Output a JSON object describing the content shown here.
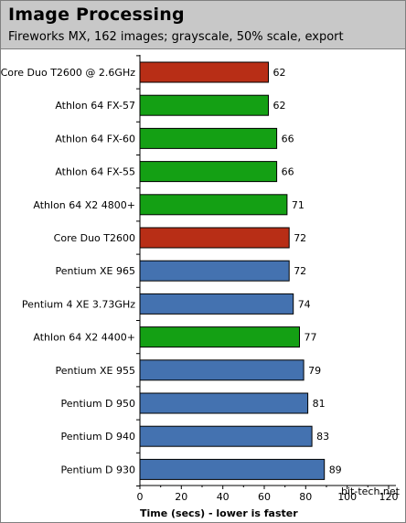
{
  "header": {
    "title": "Image Processing",
    "subtitle": "Fireworks MX, 162 images; grayscale, 50% scale, export"
  },
  "watermark": "bit-tech.net",
  "colors": {
    "intel_mobile": "#b82e16",
    "amd": "#14a014",
    "intel_desktop": "#4472b0"
  },
  "chart_data": {
    "type": "bar",
    "orientation": "horizontal",
    "title": "Image Processing",
    "subtitle": "Fireworks MX, 162 images; grayscale, 50% scale, export",
    "xlabel": "Time (secs) - lower is faster",
    "ylabel": "",
    "xlim": [
      0,
      120
    ],
    "xticks": [
      "0",
      "20",
      "40",
      "60",
      "80",
      "100",
      "120"
    ],
    "categories": [
      "Core Duo T2600 @ 2.6GHz",
      "Athlon 64 FX-57",
      "Athlon 64 FX-60",
      "Athlon 64 FX-55",
      "Athlon 64 X2 4800+",
      "Core Duo T2600",
      "Pentium XE 965",
      "Pentium 4 XE 3.73GHz",
      "Athlon 64 X2 4400+",
      "Pentium XE 955",
      "Pentium D 950",
      "Pentium D 940",
      "Pentium D 930"
    ],
    "values": [
      62,
      62,
      66,
      66,
      71,
      72,
      72,
      74,
      77,
      79,
      81,
      83,
      89
    ],
    "bar_colors": [
      "#b82e16",
      "#14a014",
      "#14a014",
      "#14a014",
      "#14a014",
      "#b82e16",
      "#4472b0",
      "#4472b0",
      "#14a014",
      "#4472b0",
      "#4472b0",
      "#4472b0",
      "#4472b0"
    ],
    "grid": false,
    "legend": "none"
  }
}
